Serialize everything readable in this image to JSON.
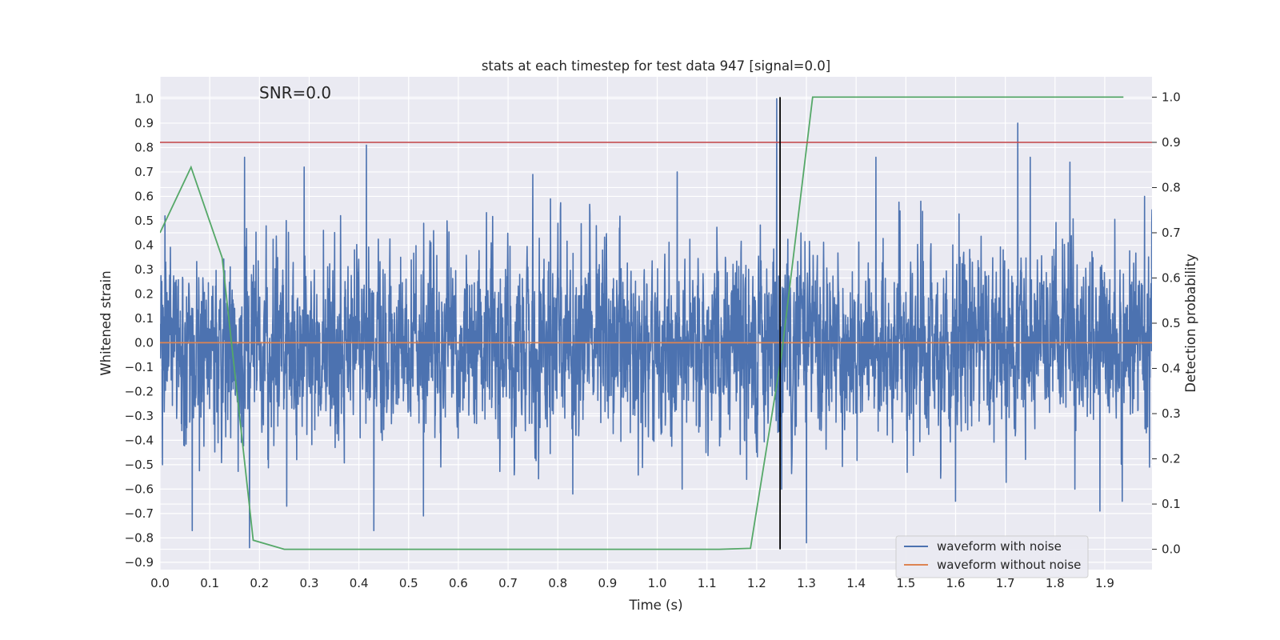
{
  "chart_data": {
    "type": "line",
    "title": "stats at each timestep for test data 947 [signal=0.0]",
    "xlabel": "Time (s)",
    "ylabel": "Whitened strain",
    "y2label": "Detection probability",
    "annotation": "SNR=0.0",
    "xlim": [
      0.0,
      1.995
    ],
    "ylim": [
      -0.93,
      1.09
    ],
    "y2lim": [
      -0.045,
      1.045
    ],
    "xticks": [
      "0.0",
      "0.1",
      "0.2",
      "0.3",
      "0.4",
      "0.5",
      "0.6",
      "0.7",
      "0.8",
      "0.9",
      "1.0",
      "1.1",
      "1.2",
      "1.3",
      "1.4",
      "1.5",
      "1.6",
      "1.7",
      "1.8",
      "1.9"
    ],
    "yticks": [
      "1.0",
      "0.9",
      "0.8",
      "0.7",
      "0.6",
      "0.5",
      "0.4",
      "0.3",
      "0.2",
      "0.1",
      "0.0",
      "−0.1",
      "−0.2",
      "−0.3",
      "−0.4",
      "−0.5",
      "−0.6",
      "−0.7",
      "−0.8",
      "−0.9"
    ],
    "y2ticks": [
      "1.0",
      "0.9",
      "0.8",
      "0.7",
      "0.6",
      "0.5",
      "0.4",
      "0.3",
      "0.2",
      "0.1",
      "0.0"
    ],
    "grid": true,
    "legend_position": "lower-right",
    "series": [
      {
        "name": "waveform with noise",
        "color": "#4c72b0",
        "axis": "left",
        "style": "noise",
        "n_points": 4000,
        "peaks": [
          [
            0.005,
            -0.5
          ],
          [
            0.01,
            0.52
          ],
          [
            0.065,
            -0.77
          ],
          [
            0.17,
            0.76
          ],
          [
            0.18,
            -0.84
          ],
          [
            0.255,
            -0.67
          ],
          [
            0.29,
            0.72
          ],
          [
            0.415,
            0.81
          ],
          [
            0.43,
            -0.77
          ],
          [
            0.53,
            -0.71
          ],
          [
            0.75,
            0.69
          ],
          [
            0.785,
            0.59
          ],
          [
            0.83,
            -0.62
          ],
          [
            1.04,
            0.7
          ],
          [
            1.05,
            -0.6
          ],
          [
            1.18,
            -0.56
          ],
          [
            1.24,
            1.0
          ],
          [
            1.25,
            -0.6
          ],
          [
            1.3,
            -0.82
          ],
          [
            1.44,
            0.76
          ],
          [
            1.53,
            0.58
          ],
          [
            1.6,
            -0.65
          ],
          [
            1.725,
            0.9
          ],
          [
            1.75,
            0.76
          ],
          [
            1.83,
            0.74
          ],
          [
            1.84,
            -0.6
          ],
          [
            1.89,
            -0.69
          ],
          [
            1.935,
            -0.65
          ],
          [
            1.98,
            0.6
          ],
          [
            1.99,
            -0.51
          ]
        ]
      },
      {
        "name": "waveform without noise",
        "color": "#dd8452",
        "axis": "left",
        "x": [
          0.0,
          1.995
        ],
        "y": [
          0.0,
          0.0
        ]
      },
      {
        "name": "",
        "color": "#55a868",
        "axis": "right",
        "x": [
          0.0,
          0.0625,
          0.125,
          0.1875,
          0.25,
          0.3125,
          0.375,
          0.4375,
          0.5,
          0.5625,
          0.625,
          0.6875,
          0.75,
          0.8125,
          0.875,
          0.9375,
          1.0,
          1.0625,
          1.125,
          1.1875,
          1.25,
          1.3125,
          1.375,
          1.4375,
          1.5,
          1.5625,
          1.625,
          1.6875,
          1.75,
          1.8125,
          1.875,
          1.9375
        ],
        "y": [
          0.7,
          0.845,
          0.645,
          0.02,
          0.0,
          0.0,
          0.0,
          0.0,
          0.0,
          0.0,
          0.0,
          0.0,
          0.0,
          0.0,
          0.0,
          0.0,
          0.0,
          0.0,
          0.0,
          0.002,
          0.43,
          1.0,
          1.0,
          1.0,
          1.0,
          1.0,
          1.0,
          1.0,
          1.0,
          1.0,
          1.0,
          1.0
        ]
      }
    ],
    "hlines": [
      {
        "axis": "right",
        "y": 0.9,
        "color": "#c44e52"
      }
    ],
    "vlines": [
      {
        "x": 1.247,
        "y_range": [
          0.0,
          1.0
        ],
        "axis": "right",
        "color": "#000000"
      }
    ]
  }
}
